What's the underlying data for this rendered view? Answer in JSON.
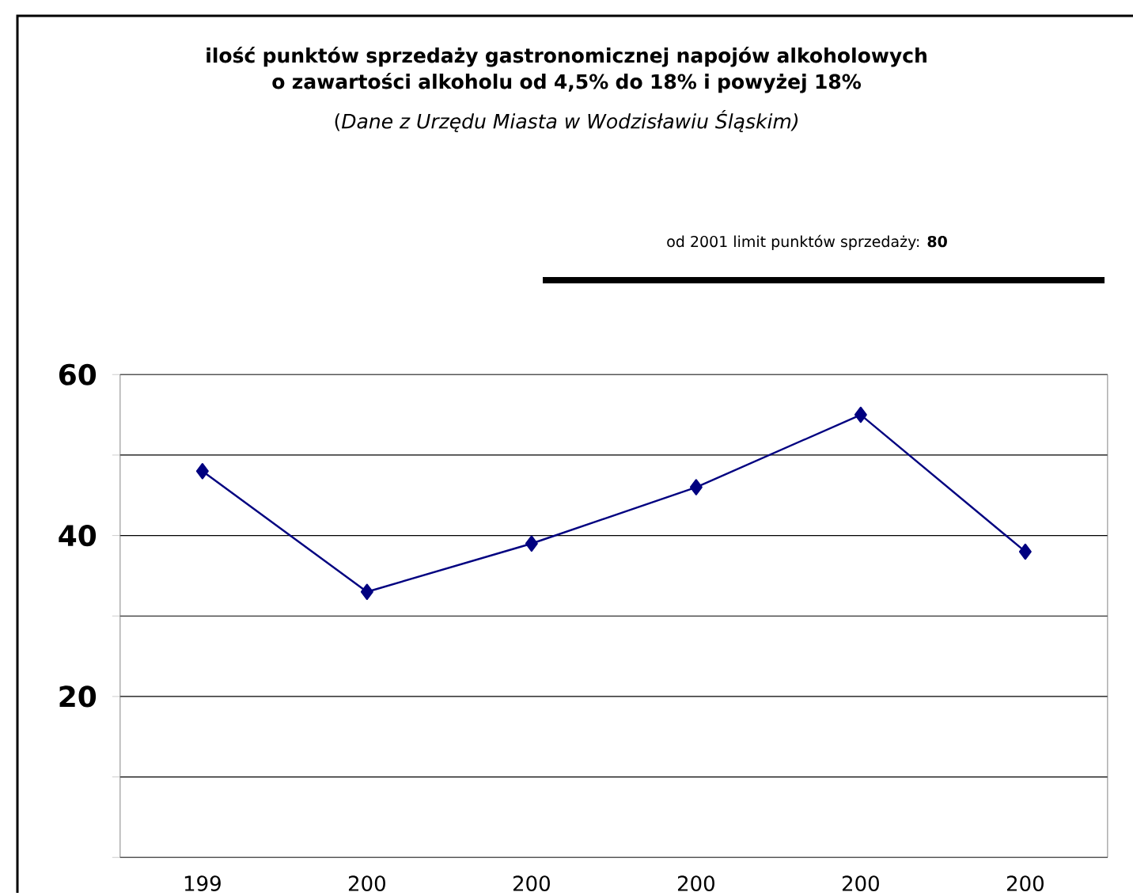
{
  "chart_data": {
    "type": "line",
    "title": "ilość punktów sprzedaży gastronomicznej napojów alkoholowych o zawartości alkoholu od 4,5% do 18% i powyżej 18%",
    "subtitle": "(*Dane z Urzędu Miasta w Wodzisławiu Śląskim)*",
    "annotations": [
      "od 2001 limit punktów sprzedaży: **80**"
    ],
    "categories": [
      "199",
      "200",
      "200",
      "200",
      "200",
      "200"
    ],
    "series": [
      {
        "color": "#000080",
        "values": [
          48,
          33,
          39,
          46,
          55,
          38
        ]
      }
    ],
    "ylim": [
      0,
      60
    ],
    "yticks": [
      {
        "value": 0,
        "label": null
      },
      {
        "value": 10,
        "label": null
      },
      {
        "value": 20,
        "label": "20"
      },
      {
        "value": 30,
        "label": null
      },
      {
        "value": 40,
        "label": "40"
      },
      {
        "value": 50,
        "label": null
      },
      {
        "value": 60,
        "label": "60"
      }
    ],
    "grid": "y",
    "marker": "diamond",
    "line_style": "solid"
  }
}
